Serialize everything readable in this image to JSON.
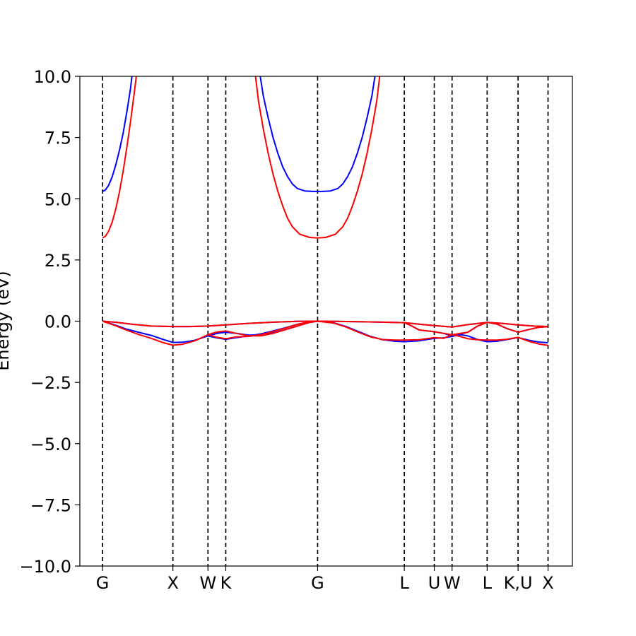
{
  "chart_data": {
    "type": "line",
    "title": "",
    "xlabel": "",
    "ylabel": "Energy (eV)",
    "ylim": [
      -10,
      10
    ],
    "yticks": [
      "−10.0",
      "−7.5",
      "−5.0",
      "−2.5",
      "0.0",
      "2.5",
      "5.0",
      "7.5",
      "10.0"
    ],
    "x_range": [
      -0.093,
      1.929
    ],
    "high_symmetry_points": [
      {
        "label": "G",
        "x": 0.0
      },
      {
        "label": "X",
        "x": 0.289
      },
      {
        "label": "W",
        "x": 0.433
      },
      {
        "label": "K",
        "x": 0.506
      },
      {
        "label": "G",
        "x": 0.883
      },
      {
        "label": "L",
        "x": 1.239
      },
      {
        "label": "U",
        "x": 1.362
      },
      {
        "label": "W",
        "x": 1.435
      },
      {
        "label": "L",
        "x": 1.579
      },
      {
        "label": "K,U",
        "x": 1.706
      },
      {
        "label": "X",
        "x": 1.829
      }
    ],
    "tick_labels": [
      "G",
      "X",
      "W",
      "K",
      "G",
      "L",
      "U",
      "W",
      "L",
      "K,U",
      "X"
    ],
    "series": [
      {
        "color": "#0000ff",
        "bands": [
          [
            [
              0.0,
              5.3
            ],
            [
              0.012,
              5.36
            ],
            [
              0.025,
              5.55
            ],
            [
              0.04,
              5.9
            ],
            [
              0.055,
              6.4
            ],
            [
              0.07,
              7.0
            ],
            [
              0.085,
              7.7
            ],
            [
              0.1,
              8.55
            ],
            [
              0.115,
              9.5
            ],
            [
              0.122,
              10.1
            ]
          ],
          [
            [
              0.646,
              10.1
            ],
            [
              0.66,
              9.2
            ],
            [
              0.68,
              8.3
            ],
            [
              0.7,
              7.5
            ],
            [
              0.72,
              6.85
            ],
            [
              0.74,
              6.3
            ],
            [
              0.76,
              5.9
            ],
            [
              0.78,
              5.6
            ],
            [
              0.8,
              5.42
            ],
            [
              0.83,
              5.32
            ],
            [
              0.863,
              5.3
            ],
            [
              0.883,
              5.3
            ],
            [
              0.903,
              5.3
            ],
            [
              0.936,
              5.32
            ],
            [
              0.966,
              5.42
            ],
            [
              0.986,
              5.6
            ],
            [
              1.006,
              5.9
            ],
            [
              1.026,
              6.3
            ],
            [
              1.046,
              6.85
            ],
            [
              1.066,
              7.5
            ],
            [
              1.086,
              8.3
            ],
            [
              1.106,
              9.2
            ],
            [
              1.12,
              10.1
            ]
          ],
          [
            [
              0.0,
              0.0
            ],
            [
              0.05,
              -0.15
            ],
            [
              0.1,
              -0.33
            ],
            [
              0.15,
              -0.46
            ],
            [
              0.2,
              -0.58
            ],
            [
              0.25,
              -0.75
            ],
            [
              0.289,
              -0.87
            ],
            [
              0.33,
              -0.86
            ],
            [
              0.38,
              -0.78
            ],
            [
              0.433,
              -0.6
            ],
            [
              0.47,
              -0.68
            ],
            [
              0.506,
              -0.74
            ],
            [
              0.55,
              -0.67
            ],
            [
              0.6,
              -0.6
            ],
            [
              0.65,
              -0.52
            ],
            [
              0.7,
              -0.4
            ],
            [
              0.75,
              -0.27
            ],
            [
              0.8,
              -0.13
            ],
            [
              0.85,
              -0.03
            ],
            [
              0.883,
              0.0
            ],
            [
              0.95,
              -0.07
            ],
            [
              1.0,
              -0.22
            ],
            [
              1.05,
              -0.42
            ],
            [
              1.1,
              -0.62
            ],
            [
              1.15,
              -0.76
            ],
            [
              1.2,
              -0.82
            ],
            [
              1.239,
              -0.84
            ],
            [
              1.3,
              -0.8
            ],
            [
              1.362,
              -0.7
            ],
            [
              1.4,
              -0.68
            ],
            [
              1.435,
              -0.62
            ],
            [
              1.47,
              -0.55
            ],
            [
              1.5,
              -0.6
            ],
            [
              1.54,
              -0.75
            ],
            [
              1.579,
              -0.84
            ],
            [
              1.62,
              -0.82
            ],
            [
              1.66,
              -0.75
            ],
            [
              1.706,
              -0.67
            ],
            [
              1.75,
              -0.78
            ],
            [
              1.79,
              -0.85
            ],
            [
              1.829,
              -0.88
            ]
          ],
          [
            [
              0.0,
              0.0
            ],
            [
              0.06,
              -0.05
            ],
            [
              0.12,
              -0.12
            ],
            [
              0.2,
              -0.2
            ],
            [
              0.289,
              -0.22
            ],
            [
              0.36,
              -0.22
            ],
            [
              0.433,
              -0.2
            ],
            [
              0.506,
              -0.15
            ],
            [
              0.6,
              -0.09
            ],
            [
              0.7,
              -0.04
            ],
            [
              0.8,
              -0.01
            ],
            [
              0.883,
              0.0
            ],
            [
              0.95,
              -0.01
            ],
            [
              1.05,
              -0.02
            ],
            [
              1.15,
              -0.04
            ],
            [
              1.239,
              -0.06
            ],
            [
              1.3,
              -0.12
            ],
            [
              1.362,
              -0.18
            ],
            [
              1.435,
              -0.24
            ],
            [
              1.5,
              -0.14
            ],
            [
              1.579,
              -0.05
            ],
            [
              1.64,
              -0.09
            ],
            [
              1.706,
              -0.15
            ],
            [
              1.77,
              -0.2
            ],
            [
              1.829,
              -0.22
            ]
          ],
          [
            [
              0.433,
              -0.6
            ],
            [
              0.47,
              -0.5
            ],
            [
              0.506,
              -0.45
            ],
            [
              0.55,
              -0.5
            ],
            [
              0.6,
              -0.57
            ],
            [
              0.65,
              -0.56
            ],
            [
              0.7,
              -0.48
            ],
            [
              0.75,
              -0.35
            ],
            [
              0.8,
              -0.2
            ],
            [
              0.85,
              -0.05
            ],
            [
              0.883,
              0.0
            ]
          ],
          [
            [
              1.239,
              -0.06
            ],
            [
              1.27,
              -0.2
            ],
            [
              1.3,
              -0.36
            ],
            [
              1.362,
              -0.43
            ],
            [
              1.4,
              -0.5
            ],
            [
              1.435,
              -0.6
            ],
            [
              1.5,
              -0.45
            ],
            [
              1.54,
              -0.2
            ],
            [
              1.579,
              -0.05
            ],
            [
              1.62,
              -0.12
            ],
            [
              1.66,
              -0.3
            ],
            [
              1.706,
              -0.45
            ],
            [
              1.75,
              -0.34
            ],
            [
              1.79,
              -0.25
            ],
            [
              1.829,
              -0.22
            ]
          ]
        ]
      },
      {
        "color": "#ff0000",
        "bands": [
          [
            [
              0.0,
              3.4
            ],
            [
              0.012,
              3.47
            ],
            [
              0.025,
              3.68
            ],
            [
              0.04,
              4.05
            ],
            [
              0.055,
              4.6
            ],
            [
              0.07,
              5.3
            ],
            [
              0.085,
              6.15
            ],
            [
              0.1,
              7.1
            ],
            [
              0.115,
              8.15
            ],
            [
              0.13,
              9.3
            ],
            [
              0.14,
              10.1
            ]
          ],
          [
            [
              0.627,
              10.1
            ],
            [
              0.64,
              9.0
            ],
            [
              0.66,
              7.85
            ],
            [
              0.68,
              6.85
            ],
            [
              0.7,
              6.0
            ],
            [
              0.72,
              5.3
            ],
            [
              0.74,
              4.7
            ],
            [
              0.76,
              4.2
            ],
            [
              0.78,
              3.85
            ],
            [
              0.81,
              3.55
            ],
            [
              0.85,
              3.42
            ],
            [
              0.883,
              3.4
            ],
            [
              0.916,
              3.42
            ],
            [
              0.956,
              3.55
            ],
            [
              0.986,
              3.85
            ],
            [
              1.006,
              4.2
            ],
            [
              1.026,
              4.7
            ],
            [
              1.046,
              5.3
            ],
            [
              1.066,
              6.0
            ],
            [
              1.086,
              6.85
            ],
            [
              1.106,
              7.85
            ],
            [
              1.126,
              9.0
            ],
            [
              1.139,
              10.1
            ]
          ],
          [
            [
              0.0,
              0.0
            ],
            [
              0.05,
              -0.17
            ],
            [
              0.1,
              -0.37
            ],
            [
              0.15,
              -0.55
            ],
            [
              0.2,
              -0.7
            ],
            [
              0.25,
              -0.88
            ],
            [
              0.289,
              -0.98
            ],
            [
              0.33,
              -0.94
            ],
            [
              0.38,
              -0.8
            ],
            [
              0.433,
              -0.55
            ],
            [
              0.47,
              -0.66
            ],
            [
              0.506,
              -0.72
            ],
            [
              0.55,
              -0.64
            ],
            [
              0.6,
              -0.62
            ],
            [
              0.65,
              -0.55
            ],
            [
              0.7,
              -0.42
            ],
            [
              0.75,
              -0.28
            ],
            [
              0.8,
              -0.13
            ],
            [
              0.85,
              -0.03
            ],
            [
              0.883,
              0.0
            ],
            [
              0.95,
              -0.08
            ],
            [
              1.0,
              -0.24
            ],
            [
              1.05,
              -0.45
            ],
            [
              1.1,
              -0.64
            ],
            [
              1.15,
              -0.75
            ],
            [
              1.2,
              -0.77
            ],
            [
              1.239,
              -0.77
            ],
            [
              1.3,
              -0.76
            ],
            [
              1.362,
              -0.67
            ],
            [
              1.4,
              -0.7
            ],
            [
              1.435,
              -0.55
            ],
            [
              1.47,
              -0.63
            ],
            [
              1.5,
              -0.72
            ],
            [
              1.54,
              -0.76
            ],
            [
              1.579,
              -0.77
            ],
            [
              1.62,
              -0.77
            ],
            [
              1.66,
              -0.74
            ],
            [
              1.706,
              -0.66
            ],
            [
              1.75,
              -0.82
            ],
            [
              1.79,
              -0.93
            ],
            [
              1.829,
              -0.99
            ]
          ],
          [
            [
              0.0,
              0.0
            ],
            [
              0.06,
              -0.05
            ],
            [
              0.12,
              -0.12
            ],
            [
              0.2,
              -0.2
            ],
            [
              0.289,
              -0.22
            ],
            [
              0.36,
              -0.22
            ],
            [
              0.433,
              -0.2
            ],
            [
              0.506,
              -0.15
            ],
            [
              0.6,
              -0.09
            ],
            [
              0.7,
              -0.04
            ],
            [
              0.8,
              -0.01
            ],
            [
              0.883,
              0.0
            ],
            [
              0.95,
              -0.01
            ],
            [
              1.05,
              -0.02
            ],
            [
              1.15,
              -0.04
            ],
            [
              1.239,
              -0.06
            ],
            [
              1.3,
              -0.12
            ],
            [
              1.362,
              -0.18
            ],
            [
              1.435,
              -0.24
            ],
            [
              1.5,
              -0.14
            ],
            [
              1.579,
              -0.05
            ],
            [
              1.64,
              -0.09
            ],
            [
              1.706,
              -0.15
            ],
            [
              1.77,
              -0.2
            ],
            [
              1.829,
              -0.22
            ]
          ],
          [
            [
              0.433,
              -0.55
            ],
            [
              0.47,
              -0.44
            ],
            [
              0.506,
              -0.4
            ],
            [
              0.55,
              -0.5
            ],
            [
              0.6,
              -0.6
            ],
            [
              0.65,
              -0.6
            ],
            [
              0.7,
              -0.5
            ],
            [
              0.75,
              -0.35
            ],
            [
              0.8,
              -0.2
            ],
            [
              0.85,
              -0.05
            ],
            [
              0.883,
              0.0
            ]
          ],
          [
            [
              1.239,
              -0.06
            ],
            [
              1.27,
              -0.2
            ],
            [
              1.3,
              -0.36
            ],
            [
              1.362,
              -0.43
            ],
            [
              1.4,
              -0.5
            ],
            [
              1.435,
              -0.55
            ],
            [
              1.5,
              -0.45
            ],
            [
              1.54,
              -0.2
            ],
            [
              1.579,
              -0.05
            ],
            [
              1.62,
              -0.12
            ],
            [
              1.66,
              -0.3
            ],
            [
              1.706,
              -0.45
            ],
            [
              1.75,
              -0.34
            ],
            [
              1.79,
              -0.25
            ],
            [
              1.829,
              -0.22
            ]
          ]
        ]
      }
    ]
  }
}
